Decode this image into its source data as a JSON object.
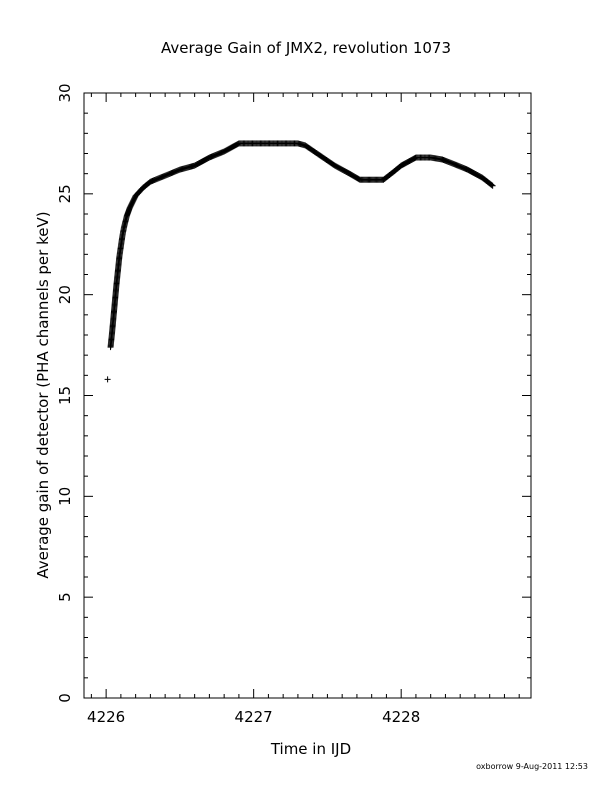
{
  "chart_data": {
    "type": "scatter",
    "title": "Average Gain of JMX2, revolution 1073",
    "xlabel": "Time in IJD",
    "ylabel": "Average gain of detector (PHA channels per keV)",
    "xlim": [
      4225.85,
      4228.88
    ],
    "ylim": [
      0,
      30
    ],
    "xticks": [
      4226,
      4227,
      4228
    ],
    "yticks": [
      0,
      5,
      10,
      15,
      20,
      25,
      30
    ],
    "marker": "plus",
    "footer": "oxborrow   9-Aug-2011 12:53",
    "series": [
      {
        "points": [
          [
            4226.01,
            15.8
          ],
          [
            4226.03,
            17.4
          ],
          [
            4226.04,
            18.1
          ],
          [
            4226.05,
            18.9
          ],
          [
            4226.06,
            19.7
          ],
          [
            4226.07,
            20.5
          ],
          [
            4226.08,
            21.2
          ],
          [
            4226.09,
            21.9
          ],
          [
            4226.1,
            22.4
          ],
          [
            4226.11,
            22.9
          ],
          [
            4226.12,
            23.3
          ],
          [
            4226.14,
            23.9
          ],
          [
            4226.16,
            24.3
          ],
          [
            4226.18,
            24.6
          ],
          [
            4226.2,
            24.9
          ],
          [
            4226.25,
            25.3
          ],
          [
            4226.3,
            25.6
          ],
          [
            4226.4,
            25.9
          ],
          [
            4226.5,
            26.2
          ],
          [
            4226.6,
            26.4
          ],
          [
            4226.7,
            26.8
          ],
          [
            4226.8,
            27.1
          ],
          [
            4226.9,
            27.5
          ],
          [
            4227.0,
            27.5
          ],
          [
            4227.1,
            27.5
          ],
          [
            4227.2,
            27.5
          ],
          [
            4227.3,
            27.5
          ],
          [
            4227.35,
            27.4
          ],
          [
            4227.45,
            26.9
          ],
          [
            4227.55,
            26.4
          ],
          [
            4227.65,
            26.0
          ],
          [
            4227.72,
            25.7
          ],
          [
            4227.8,
            25.7
          ],
          [
            4227.88,
            25.7
          ],
          [
            4227.95,
            26.1
          ],
          [
            4228.0,
            26.4
          ],
          [
            4228.05,
            26.6
          ],
          [
            4228.1,
            26.8
          ],
          [
            4228.2,
            26.8
          ],
          [
            4228.28,
            26.7
          ],
          [
            4228.35,
            26.5
          ],
          [
            4228.45,
            26.2
          ],
          [
            4228.55,
            25.8
          ],
          [
            4228.62,
            25.4
          ]
        ]
      }
    ]
  }
}
